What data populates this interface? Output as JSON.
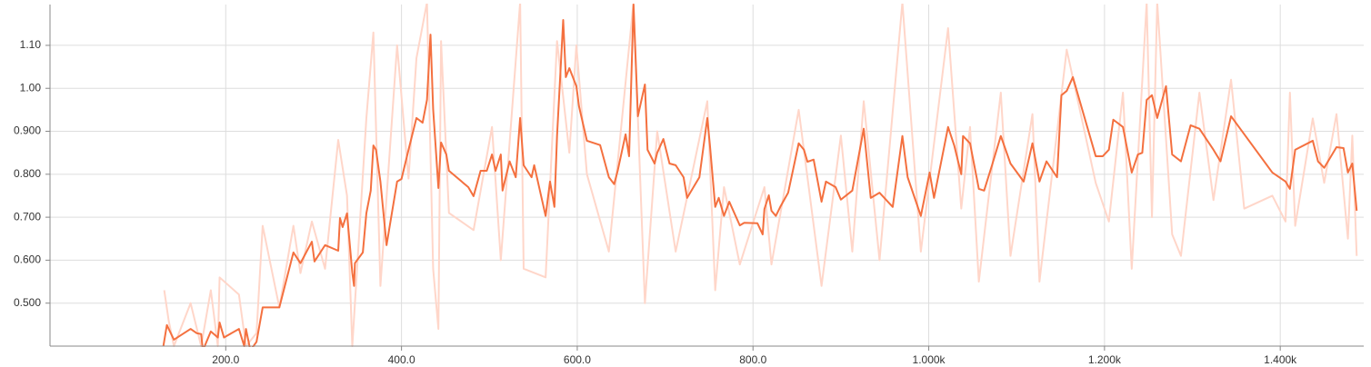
{
  "chart_data": {
    "type": "line",
    "grid": true,
    "xlim": [
      0,
      1495
    ],
    "ylim": [
      0.4,
      1.195
    ],
    "xticks": [
      {
        "value": 200,
        "label": "200.0"
      },
      {
        "value": 400,
        "label": "400.0"
      },
      {
        "value": 600,
        "label": "600.0"
      },
      {
        "value": 800,
        "label": "800.0"
      },
      {
        "value": 1000,
        "label": "1.000k"
      },
      {
        "value": 1200,
        "label": "1.200k"
      },
      {
        "value": 1400,
        "label": "1.400k"
      }
    ],
    "yticks": [
      {
        "value": 0.5,
        "label": "0.500"
      },
      {
        "value": 0.6,
        "label": "0.600"
      },
      {
        "value": 0.7,
        "label": "0.700"
      },
      {
        "value": 0.8,
        "label": "0.800"
      },
      {
        "value": 0.9,
        "label": "0.900"
      },
      {
        "value": 1.0,
        "label": "1.00"
      },
      {
        "value": 1.1,
        "label": "1.10"
      }
    ],
    "series": [
      {
        "color": "#ffd6c9",
        "x": [
          130,
          135,
          141,
          160,
          172,
          183,
          191,
          193,
          215,
          223,
          235,
          242,
          261,
          277,
          285,
          298,
          313,
          328,
          338,
          344,
          360,
          368,
          376,
          395,
          408,
          417,
          429,
          436,
          442,
          445,
          454,
          482,
          503,
          513,
          535,
          539,
          564,
          577,
          591,
          599,
          611,
          636,
          664,
          677,
          691,
          712,
          748,
          757,
          767,
          785,
          813,
          821,
          852,
          878,
          900,
          913,
          926,
          944,
          970,
          991,
          1022,
          1037,
          1047,
          1057,
          1082,
          1093,
          1118,
          1126,
          1157,
          1190,
          1205,
          1221,
          1231,
          1248,
          1254,
          1260,
          1277,
          1287,
          1308,
          1324,
          1344,
          1359,
          1391,
          1406,
          1411,
          1417,
          1437,
          1450,
          1464,
          1477,
          1482,
          1487
        ],
        "values": [
          0.53,
          0.46,
          0.4,
          0.5,
          0.4,
          0.53,
          0.4,
          0.56,
          0.52,
          0.4,
          0.43,
          0.68,
          0.49,
          0.68,
          0.57,
          0.69,
          0.58,
          0.88,
          0.75,
          0.4,
          0.93,
          1.13,
          0.54,
          1.1,
          0.79,
          1.07,
          1.2,
          0.58,
          0.44,
          1.11,
          0.71,
          0.67,
          0.91,
          0.6,
          1.2,
          0.58,
          0.56,
          1.11,
          0.85,
          1.1,
          0.8,
          0.62,
          1.2,
          0.5,
          0.9,
          0.62,
          0.97,
          0.53,
          0.77,
          0.59,
          0.77,
          0.59,
          0.95,
          0.54,
          0.89,
          0.62,
          0.97,
          0.6,
          1.2,
          0.62,
          1.14,
          0.72,
          0.91,
          0.55,
          0.99,
          0.61,
          0.94,
          0.55,
          1.09,
          0.78,
          0.69,
          0.99,
          0.58,
          1.2,
          0.7,
          1.2,
          0.66,
          0.61,
          0.99,
          0.74,
          1.02,
          0.72,
          0.75,
          0.69,
          0.99,
          0.68,
          0.93,
          0.78,
          0.94,
          0.65,
          0.89,
          0.61
        ]
      },
      {
        "color": "#f4703f",
        "x": [
          129,
          133,
          141,
          160,
          167,
          172,
          174,
          183,
          191,
          193,
          198,
          215,
          221,
          223,
          228,
          235,
          242,
          261,
          277,
          285,
          298,
          301,
          313,
          328,
          330,
          333,
          338,
          344,
          346,
          347,
          356,
          360,
          365,
          368,
          371,
          376,
          383,
          395,
          400,
          408,
          417,
          424,
          429,
          433,
          436,
          442,
          445,
          451,
          454,
          476,
          482,
          490,
          497,
          503,
          507,
          513,
          515,
          523,
          530,
          535,
          539,
          548,
          551,
          564,
          569,
          574,
          577,
          584,
          587,
          591,
          599,
          602,
          611,
          626,
          636,
          642,
          646,
          655,
          659,
          664,
          669,
          677,
          680,
          688,
          691,
          698,
          705,
          712,
          721,
          725,
          739,
          748,
          751,
          757,
          761,
          767,
          773,
          785,
          790,
          805,
          811,
          813,
          818,
          821,
          826,
          831,
          840,
          852,
          858,
          862,
          869,
          878,
          883,
          894,
          900,
          913,
          926,
          934,
          944,
          959,
          970,
          976,
          991,
          1001,
          1006,
          1022,
          1029,
          1037,
          1039,
          1047,
          1057,
          1063,
          1072,
          1082,
          1093,
          1108,
          1118,
          1126,
          1134,
          1146,
          1151,
          1157,
          1164,
          1190,
          1198,
          1205,
          1210,
          1221,
          1231,
          1238,
          1243,
          1248,
          1254,
          1260,
          1270,
          1277,
          1287,
          1298,
          1308,
          1324,
          1332,
          1344,
          1391,
          1406,
          1411,
          1417,
          1437,
          1443,
          1450,
          1464,
          1472,
          1477,
          1482,
          1487
        ],
        "values": [
          0.4,
          0.449,
          0.415,
          0.44,
          0.43,
          0.428,
          0.39,
          0.434,
          0.42,
          0.455,
          0.42,
          0.44,
          0.4,
          0.44,
          0.39,
          0.41,
          0.49,
          0.49,
          0.618,
          0.593,
          0.643,
          0.597,
          0.635,
          0.622,
          0.698,
          0.677,
          0.709,
          0.571,
          0.54,
          0.593,
          0.618,
          0.709,
          0.762,
          0.867,
          0.857,
          0.783,
          0.635,
          0.783,
          0.789,
          0.857,
          0.931,
          0.92,
          0.973,
          1.125,
          0.952,
          0.768,
          0.874,
          0.846,
          0.808,
          0.77,
          0.749,
          0.808,
          0.808,
          0.846,
          0.808,
          0.846,
          0.762,
          0.83,
          0.793,
          0.931,
          0.821,
          0.793,
          0.821,
          0.703,
          0.783,
          0.724,
          0.889,
          1.159,
          1.026,
          1.047,
          1.005,
          0.958,
          0.878,
          0.868,
          0.793,
          0.777,
          0.808,
          0.893,
          0.842,
          1.195,
          0.935,
          1.009,
          0.857,
          0.825,
          0.85,
          0.882,
          0.825,
          0.821,
          0.793,
          0.745,
          0.793,
          0.931,
          0.867,
          0.724,
          0.745,
          0.703,
          0.736,
          0.681,
          0.687,
          0.686,
          0.66,
          0.719,
          0.751,
          0.715,
          0.703,
          0.724,
          0.757,
          0.872,
          0.857,
          0.829,
          0.834,
          0.736,
          0.783,
          0.77,
          0.741,
          0.762,
          0.906,
          0.745,
          0.757,
          0.724,
          0.889,
          0.793,
          0.703,
          0.804,
          0.745,
          0.91,
          0.867,
          0.8,
          0.889,
          0.872,
          0.766,
          0.762,
          0.821,
          0.889,
          0.825,
          0.783,
          0.872,
          0.783,
          0.83,
          0.793,
          0.984,
          0.994,
          1.026,
          0.842,
          0.842,
          0.857,
          0.927,
          0.91,
          0.804,
          0.846,
          0.85,
          0.973,
          0.984,
          0.931,
          1.005,
          0.846,
          0.83,
          0.914,
          0.906,
          0.857,
          0.83,
          0.935,
          0.804,
          0.783,
          0.766,
          0.857,
          0.878,
          0.83,
          0.815,
          0.863,
          0.861,
          0.804,
          0.825,
          0.715
        ]
      }
    ]
  }
}
